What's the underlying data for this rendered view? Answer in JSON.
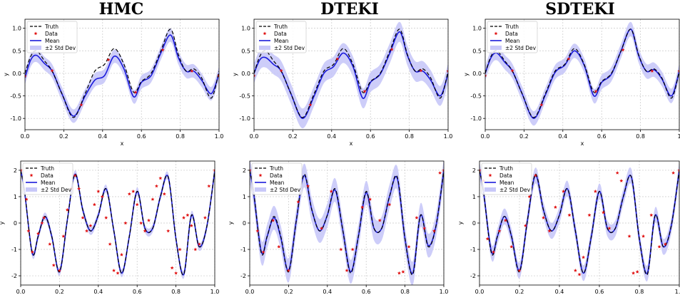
{
  "titles": [
    "HMC",
    "DTEKI",
    "SDTEKI"
  ],
  "legend": {
    "truth": "Truth",
    "data": "Data",
    "mean": "Mean",
    "band": "±2 Std Dev"
  },
  "colors": {
    "truth": "#000000",
    "mean": "#1a1adb",
    "band": "#c8c8f8",
    "data": "#e01010",
    "grid": "#c8c8c8"
  },
  "chart_data": [
    {
      "type": "line",
      "panel": "HMC top",
      "title": "HMC",
      "xlabel": "x",
      "ylabel": "y",
      "xlim": [
        0,
        1
      ],
      "ylim": [
        -1.25,
        1.2
      ],
      "x_ticks": [
        "0.0",
        "0.2",
        "0.4",
        "0.6",
        "0.8",
        "1.0"
      ],
      "y_ticks": [
        "-1.0",
        "-0.5",
        "0.0",
        "0.5",
        "1.0"
      ],
      "y_tick_values": [
        -1,
        -0.5,
        0,
        0.5,
        1
      ],
      "grid": true,
      "legend_position": "upper-left",
      "truth_x": [
        0,
        0.03,
        0.06,
        0.1,
        0.14,
        0.19,
        0.25,
        0.31,
        0.36,
        0.41,
        0.46,
        0.51,
        0.56,
        0.6,
        0.65,
        0.7,
        0.75,
        0.79,
        0.83,
        0.87,
        0.91,
        0.96,
        1.0
      ],
      "truth_y": [
        0.0,
        0.38,
        0.5,
        0.28,
        0.05,
        -0.45,
        -0.98,
        -0.45,
        0.05,
        0.2,
        0.55,
        0.2,
        -0.42,
        -0.18,
        0.0,
        0.5,
        0.98,
        0.42,
        0.05,
        0.1,
        -0.1,
        -0.55,
        0.05
      ],
      "mean_x": [
        0,
        0.03,
        0.06,
        0.1,
        0.14,
        0.19,
        0.25,
        0.31,
        0.36,
        0.41,
        0.46,
        0.51,
        0.56,
        0.6,
        0.65,
        0.7,
        0.75,
        0.79,
        0.83,
        0.87,
        0.91,
        0.96,
        1.0
      ],
      "mean_y": [
        -0.1,
        0.3,
        0.4,
        0.22,
        0.05,
        -0.45,
        -0.95,
        -0.5,
        -0.15,
        -0.05,
        0.38,
        0.1,
        -0.52,
        -0.2,
        -0.05,
        0.45,
        0.85,
        0.35,
        0.05,
        0.05,
        -0.15,
        -0.45,
        0.0
      ],
      "std2": 0.15,
      "data_x": [
        0.0,
        0.14,
        0.29,
        0.43,
        0.57,
        0.71,
        0.86,
        1.0
      ],
      "data_y": [
        -0.06,
        0.06,
        -0.7,
        0.3,
        -0.42,
        0.52,
        0.05,
        -0.05
      ]
    },
    {
      "type": "line",
      "panel": "DTEKI top",
      "title": "DTEKI",
      "xlabel": "x",
      "ylabel": "y",
      "xlim": [
        0,
        1
      ],
      "ylim": [
        -1.25,
        1.2
      ],
      "x_ticks": [
        "0.0",
        "0.2",
        "0.4",
        "0.6",
        "0.8",
        "1.0"
      ],
      "y_ticks": [
        "-1.0",
        "-0.5",
        "0.0",
        "0.5",
        "1.0"
      ],
      "y_tick_values": [
        -1,
        -0.5,
        0,
        0.5,
        1
      ],
      "grid": true,
      "legend_position": "upper-left",
      "truth_x": [
        0,
        0.03,
        0.06,
        0.1,
        0.14,
        0.19,
        0.25,
        0.31,
        0.36,
        0.41,
        0.46,
        0.51,
        0.56,
        0.6,
        0.65,
        0.7,
        0.75,
        0.79,
        0.83,
        0.87,
        0.91,
        0.96,
        1.0
      ],
      "truth_y": [
        0.0,
        0.38,
        0.5,
        0.28,
        0.05,
        -0.45,
        -0.98,
        -0.45,
        0.05,
        0.2,
        0.55,
        0.2,
        -0.42,
        -0.18,
        0.0,
        0.5,
        0.98,
        0.42,
        0.05,
        0.1,
        -0.1,
        -0.55,
        0.05
      ],
      "mean_x": [
        0,
        0.03,
        0.06,
        0.1,
        0.14,
        0.19,
        0.25,
        0.31,
        0.36,
        0.41,
        0.46,
        0.51,
        0.56,
        0.6,
        0.65,
        0.7,
        0.75,
        0.79,
        0.83,
        0.87,
        0.91,
        0.96,
        1.0
      ],
      "mean_y": [
        0.0,
        0.3,
        0.35,
        0.2,
        0.05,
        -0.45,
        -1.0,
        -0.5,
        0.0,
        0.15,
        0.45,
        0.15,
        -0.55,
        -0.2,
        -0.02,
        0.45,
        0.92,
        0.4,
        0.05,
        0.05,
        -0.15,
        -0.5,
        0.0
      ],
      "std2": 0.22,
      "data_x": [
        0.0,
        0.14,
        0.29,
        0.43,
        0.57,
        0.71,
        0.86,
        1.0
      ],
      "data_y": [
        -0.05,
        0.06,
        -0.7,
        0.32,
        -0.4,
        0.53,
        0.06,
        0.05
      ]
    },
    {
      "type": "line",
      "panel": "SDTEKI top",
      "title": "SDTEKI",
      "xlabel": "x",
      "ylabel": "y",
      "xlim": [
        0,
        1
      ],
      "ylim": [
        -1.25,
        1.2
      ],
      "x_ticks": [
        "0.0",
        "0.2",
        "0.4",
        "0.6",
        "0.8",
        "1"
      ],
      "y_ticks": [
        "-1.0",
        "-0.5",
        "0.0",
        "0.5",
        "1.0"
      ],
      "y_tick_values": [
        -1,
        -0.5,
        0,
        0.5,
        1
      ],
      "grid": true,
      "legend_position": "upper-left",
      "truth_x": [
        0,
        0.03,
        0.06,
        0.1,
        0.14,
        0.19,
        0.25,
        0.31,
        0.36,
        0.41,
        0.46,
        0.51,
        0.56,
        0.6,
        0.65,
        0.7,
        0.75,
        0.79,
        0.83,
        0.87,
        0.91,
        0.96,
        1.0
      ],
      "truth_y": [
        0.0,
        0.38,
        0.5,
        0.28,
        0.05,
        -0.45,
        -0.98,
        -0.45,
        0.05,
        0.2,
        0.55,
        0.2,
        -0.42,
        -0.18,
        0.0,
        0.5,
        0.98,
        0.42,
        0.05,
        0.1,
        -0.1,
        -0.55,
        0.05
      ],
      "mean_x": [
        0,
        0.03,
        0.06,
        0.1,
        0.14,
        0.19,
        0.25,
        0.31,
        0.36,
        0.41,
        0.46,
        0.51,
        0.56,
        0.6,
        0.65,
        0.7,
        0.75,
        0.79,
        0.83,
        0.87,
        0.91,
        0.96,
        1.0
      ],
      "mean_y": [
        0.0,
        0.35,
        0.45,
        0.25,
        0.05,
        -0.45,
        -1.0,
        -0.48,
        0.02,
        0.18,
        0.5,
        0.18,
        -0.5,
        -0.2,
        -0.02,
        0.5,
        0.98,
        0.4,
        0.05,
        0.08,
        -0.12,
        -0.5,
        0.05
      ],
      "std2": 0.16,
      "data_x": [
        0.0,
        0.14,
        0.29,
        0.43,
        0.57,
        0.71,
        0.86,
        1.0
      ],
      "data_y": [
        -0.05,
        0.06,
        -0.7,
        0.32,
        -0.4,
        0.52,
        0.05,
        0.05
      ]
    },
    {
      "type": "line",
      "panel": "HMC bottom",
      "xlabel": "x",
      "ylabel": "y",
      "xlim": [
        0,
        1
      ],
      "ylim": [
        -2.35,
        2.35
      ],
      "x_ticks": [
        "0.0",
        "0.2",
        "0.4",
        "0.6",
        "0.8",
        "1.0"
      ],
      "y_ticks": [
        "-2",
        "-1",
        "0",
        "1",
        "2"
      ],
      "y_tick_values": [
        -2,
        -1,
        0,
        1,
        2
      ],
      "grid": true,
      "legend_position": "upper-left",
      "truth_x": [
        0,
        0.02,
        0.06,
        0.09,
        0.125,
        0.16,
        0.2,
        0.24,
        0.28,
        0.32,
        0.36,
        0.4,
        0.44,
        0.48,
        0.52,
        0.56,
        0.6,
        0.64,
        0.68,
        0.72,
        0.76,
        0.8,
        0.84,
        0.88,
        0.92,
        0.96,
        1.0
      ],
      "truth_y": [
        2.0,
        1.2,
        -1.15,
        -0.5,
        0.25,
        -0.5,
        -1.85,
        0.1,
        1.85,
        0.5,
        -0.3,
        0.3,
        1.3,
        -0.3,
        -1.9,
        -0.5,
        1.2,
        -0.2,
        -0.2,
        1.0,
        1.75,
        -0.6,
        -1.95,
        0.3,
        -0.9,
        -0.1,
        2.0
      ],
      "mean_x": [
        0,
        0.02,
        0.06,
        0.09,
        0.125,
        0.16,
        0.2,
        0.24,
        0.28,
        0.32,
        0.36,
        0.4,
        0.44,
        0.48,
        0.52,
        0.56,
        0.6,
        0.64,
        0.68,
        0.72,
        0.76,
        0.8,
        0.84,
        0.88,
        0.92,
        0.96,
        1.0
      ],
      "mean_y": [
        2.0,
        1.2,
        -1.15,
        -0.5,
        0.25,
        -0.5,
        -1.85,
        0.1,
        1.85,
        0.5,
        -0.3,
        0.3,
        1.3,
        -0.3,
        -1.9,
        -0.5,
        1.2,
        -0.2,
        -0.2,
        1.0,
        1.75,
        -0.6,
        -1.95,
        0.3,
        -0.9,
        -0.1,
        2.0
      ],
      "std2": 0.15,
      "data_x": [
        0.0,
        0.03,
        0.04,
        0.06,
        0.09,
        0.11,
        0.12,
        0.15,
        0.17,
        0.2,
        0.22,
        0.24,
        0.26,
        0.28,
        0.3,
        0.32,
        0.34,
        0.36,
        0.38,
        0.4,
        0.42,
        0.44,
        0.46,
        0.48,
        0.5,
        0.52,
        0.54,
        0.56,
        0.58,
        0.6,
        0.62,
        0.64,
        0.66,
        0.68,
        0.7,
        0.72,
        0.74,
        0.76,
        0.78,
        0.8,
        0.82,
        0.84,
        0.86,
        0.88,
        0.9,
        0.92,
        0.95,
        0.97,
        1.0
      ],
      "data_y": [
        2.0,
        0.9,
        -0.3,
        -1.1,
        -0.4,
        0.0,
        0.2,
        -0.8,
        -1.6,
        -1.8,
        -0.5,
        0.5,
        1.3,
        1.8,
        1.3,
        0.2,
        -0.3,
        -0.1,
        0.7,
        1.2,
        1.0,
        0.2,
        -0.8,
        -1.8,
        -1.9,
        -1.2,
        0.0,
        1.1,
        1.2,
        0.7,
        0.0,
        -0.3,
        0.1,
        0.9,
        1.4,
        1.7,
        1.1,
        -0.3,
        -1.7,
        -1.9,
        -1.0,
        0.2,
        0.3,
        -0.1,
        -1.0,
        -0.8,
        0.2,
        1.4,
        2.0
      ]
    },
    {
      "type": "line",
      "panel": "DTEKI bottom",
      "xlabel": "x",
      "ylabel": "y",
      "xlim": [
        0,
        1
      ],
      "ylim": [
        -2.35,
        2.35
      ],
      "x_ticks": [
        "0.0",
        "0.2",
        "0.4",
        "0.6",
        "0.8",
        "1.0"
      ],
      "y_ticks": [
        "-2",
        "-1",
        "0",
        "1",
        "2"
      ],
      "y_tick_values": [
        -2,
        -1,
        0,
        1,
        2
      ],
      "grid": true,
      "legend_position": "upper-left",
      "truth_x": [
        0,
        0.02,
        0.06,
        0.09,
        0.125,
        0.16,
        0.2,
        0.24,
        0.28,
        0.32,
        0.36,
        0.4,
        0.44,
        0.48,
        0.52,
        0.56,
        0.6,
        0.64,
        0.68,
        0.72,
        0.76,
        0.8,
        0.84,
        0.88,
        0.92,
        0.96,
        1.0
      ],
      "truth_y": [
        2.0,
        1.2,
        -1.15,
        -0.5,
        0.25,
        -0.5,
        -1.85,
        0.1,
        1.85,
        0.5,
        -0.3,
        0.3,
        1.3,
        -0.3,
        -1.9,
        -0.5,
        1.2,
        -0.2,
        -0.2,
        1.0,
        1.75,
        -0.6,
        -1.95,
        0.3,
        -0.9,
        -0.1,
        2.0
      ],
      "mean_x": [
        0,
        0.02,
        0.06,
        0.09,
        0.125,
        0.16,
        0.2,
        0.24,
        0.28,
        0.32,
        0.36,
        0.4,
        0.44,
        0.48,
        0.52,
        0.56,
        0.6,
        0.64,
        0.68,
        0.72,
        0.76,
        0.8,
        0.84,
        0.88,
        0.92,
        0.96,
        1.0
      ],
      "mean_y": [
        2.0,
        1.15,
        -1.1,
        -0.5,
        0.2,
        -0.55,
        -1.8,
        0.1,
        1.8,
        0.5,
        -0.3,
        0.3,
        1.25,
        -0.3,
        -1.85,
        -0.5,
        1.15,
        -0.2,
        -0.2,
        1.0,
        1.7,
        -0.6,
        -1.9,
        0.3,
        -0.85,
        -0.1,
        2.0
      ],
      "std2": 0.45,
      "data_x": [
        0.0,
        0.04,
        0.07,
        0.12,
        0.15,
        0.2,
        0.25,
        0.3,
        0.37,
        0.42,
        0.47,
        0.5,
        0.53,
        0.58,
        0.62,
        0.67,
        0.72,
        0.77,
        0.79,
        0.82,
        0.86,
        0.9,
        0.95,
        0.98,
        1.0
      ],
      "data_y": [
        2.0,
        -0.3,
        -1.1,
        0.1,
        -0.9,
        -1.8,
        0.8,
        1.4,
        -0.2,
        1.2,
        -1.0,
        -1.8,
        -1.0,
        0.6,
        0.9,
        0.1,
        0.7,
        -1.9,
        -1.85,
        -0.9,
        0.2,
        -0.2,
        -0.3,
        1.9,
        2.0
      ]
    },
    {
      "type": "line",
      "panel": "SDTEKI bottom",
      "xlabel": "x",
      "ylabel": "y",
      "xlim": [
        0,
        1
      ],
      "ylim": [
        -2.35,
        2.35
      ],
      "x_ticks": [
        "0.0",
        "0.2",
        "0.4",
        "0.6",
        "0.8",
        "1.0"
      ],
      "y_ticks": [
        "-2",
        "-1",
        "0",
        "1",
        "2"
      ],
      "y_tick_values": [
        -2,
        -1,
        0,
        1,
        2
      ],
      "grid": true,
      "legend_position": "upper-left",
      "truth_x": [
        0,
        0.02,
        0.06,
        0.09,
        0.125,
        0.16,
        0.2,
        0.24,
        0.28,
        0.32,
        0.36,
        0.4,
        0.44,
        0.48,
        0.52,
        0.56,
        0.6,
        0.64,
        0.68,
        0.72,
        0.76,
        0.8,
        0.84,
        0.88,
        0.92,
        0.96,
        1.0
      ],
      "truth_y": [
        2.0,
        1.2,
        -1.15,
        -0.5,
        0.25,
        -0.5,
        -1.85,
        0.1,
        1.85,
        0.5,
        -0.3,
        0.3,
        1.3,
        -0.3,
        -1.9,
        -0.5,
        1.2,
        -0.2,
        -0.2,
        1.0,
        1.75,
        -0.6,
        -1.95,
        0.3,
        -0.9,
        -0.1,
        2.0
      ],
      "mean_x": [
        0,
        0.02,
        0.06,
        0.09,
        0.125,
        0.16,
        0.2,
        0.24,
        0.28,
        0.32,
        0.36,
        0.4,
        0.44,
        0.48,
        0.52,
        0.56,
        0.6,
        0.64,
        0.68,
        0.72,
        0.76,
        0.8,
        0.84,
        0.88,
        0.92,
        0.96,
        1.0
      ],
      "mean_y": [
        2.0,
        1.2,
        -1.1,
        -0.5,
        0.25,
        -0.5,
        -1.8,
        0.1,
        1.8,
        0.5,
        -0.3,
        0.3,
        1.3,
        -0.3,
        -1.9,
        -0.5,
        1.2,
        -0.2,
        -0.2,
        1.0,
        1.75,
        -0.6,
        -1.9,
        0.3,
        -0.9,
        -0.1,
        2.0
      ],
      "std2": 0.3,
      "data_x": [
        0.0,
        0.02,
        0.04,
        0.07,
        0.1,
        0.13,
        0.16,
        0.2,
        0.23,
        0.25,
        0.28,
        0.32,
        0.35,
        0.38,
        0.42,
        0.45,
        0.48,
        0.5,
        0.52,
        0.55,
        0.58,
        0.62,
        0.65,
        0.69,
        0.71,
        0.75,
        0.77,
        0.79,
        0.82,
        0.86,
        0.9,
        0.93,
        0.97,
        1.0
      ],
      "data_y": [
        2.0,
        1.6,
        -0.6,
        -1.1,
        -0.3,
        0.1,
        -0.9,
        -1.8,
        -0.1,
        1.0,
        1.8,
        0.2,
        -0.3,
        0.6,
        1.2,
        0.3,
        -1.8,
        -1.95,
        -1.3,
        0.3,
        1.2,
        0.4,
        -0.2,
        1.9,
        1.6,
        -0.5,
        -1.9,
        -1.85,
        -0.5,
        0.3,
        -0.9,
        -0.8,
        1.9,
        2.0
      ]
    }
  ]
}
